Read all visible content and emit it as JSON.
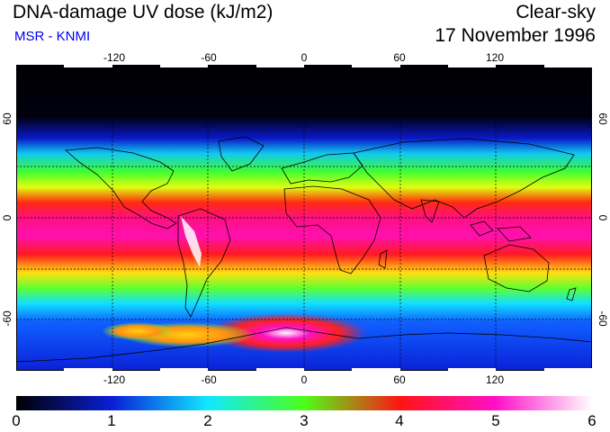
{
  "header": {
    "title": "DNA-damage UV dose (kJ/m2)",
    "subtitle": "MSR - KNMI",
    "condition": "Clear-sky",
    "date": "17 November 1996"
  },
  "map": {
    "lon_ticks": [
      "-120",
      "-60",
      "0",
      "60",
      "120"
    ],
    "lat_ticks_left": [
      "60",
      "0",
      "-60"
    ],
    "lat_ticks_right": [
      "60",
      "0",
      "-60"
    ],
    "grid_style": "dotted"
  },
  "colorbar": {
    "labels": [
      "0",
      "1",
      "2",
      "3",
      "4",
      "5",
      "6"
    ],
    "stops": [
      "#000000",
      "#0a1fd8",
      "#11e8ff",
      "#4cff18",
      "#ff1414",
      "#ff10c8",
      "#ffffff"
    ]
  },
  "colors": {
    "subtitle": "#0000ee"
  }
}
